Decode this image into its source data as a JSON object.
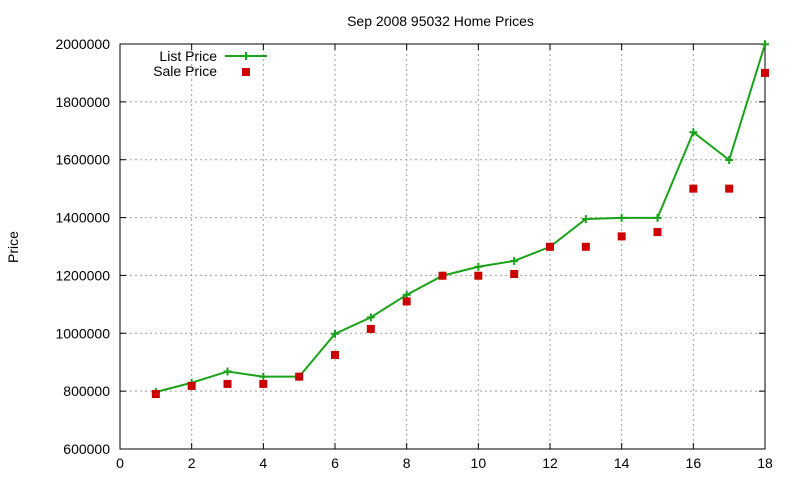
{
  "chart_data": {
    "type": "line",
    "title": "Sep 2008 95032 Home Prices",
    "xlabel": "",
    "ylabel": "Price",
    "xlim": [
      0,
      18
    ],
    "ylim": [
      600000,
      2000000
    ],
    "x_ticks": [
      0,
      2,
      4,
      6,
      8,
      10,
      12,
      14,
      16,
      18
    ],
    "y_ticks": [
      600000,
      800000,
      1000000,
      1200000,
      1400000,
      1600000,
      1800000,
      2000000
    ],
    "x_tick_labels": [
      "0",
      "2",
      "4",
      "6",
      "8",
      "10",
      "12",
      "14",
      "16",
      "18"
    ],
    "y_tick_labels": [
      "600000",
      "800000",
      "1000000",
      "1200000",
      "1400000",
      "1600000",
      "1800000",
      "2000000"
    ],
    "grid": true,
    "legend_position": "top-left",
    "series": [
      {
        "name": "List Price",
        "style": "line-with-plus-markers",
        "color": "#1aa31a",
        "x": [
          1,
          2,
          3,
          4,
          5,
          6,
          7,
          8,
          9,
          10,
          11,
          12,
          13,
          14,
          15,
          16,
          17,
          18
        ],
        "y": [
          797000,
          829000,
          868000,
          850000,
          850000,
          998000,
          1055000,
          1133000,
          1199000,
          1230000,
          1250000,
          1299000,
          1395000,
          1399000,
          1399000,
          1695000,
          1599000,
          1999000
        ]
      },
      {
        "name": "Sale Price",
        "style": "square-markers",
        "color": "#cc0000",
        "x": [
          1,
          2,
          3,
          4,
          5,
          6,
          7,
          8,
          9,
          10,
          11,
          12,
          13,
          14,
          15,
          16,
          17,
          18
        ],
        "y": [
          790000,
          818000,
          825000,
          825000,
          850000,
          925000,
          1015000,
          1110000,
          1199000,
          1199000,
          1205000,
          1299000,
          1299000,
          1335000,
          1350000,
          1500000,
          1500000,
          1900000
        ]
      }
    ]
  }
}
